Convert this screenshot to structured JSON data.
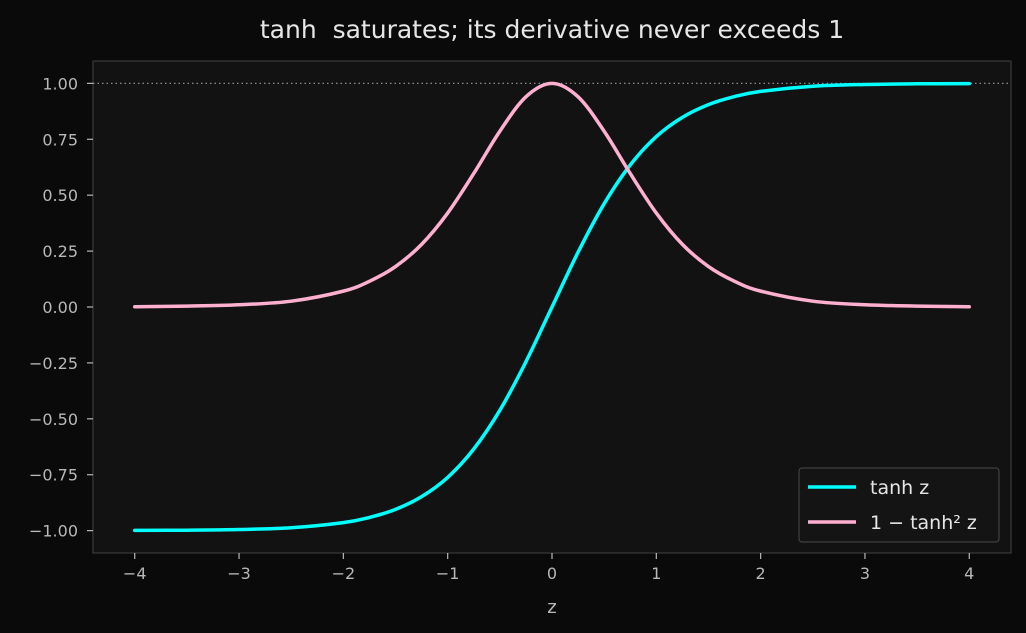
{
  "chart_data": {
    "type": "line",
    "title": "tanh  saturates; its derivative never exceeds 1",
    "xlabel": "z",
    "ylabel": "",
    "xlim": [
      -4.4,
      4.4
    ],
    "ylim": [
      -1.1,
      1.1
    ],
    "x_ticks": [
      -4,
      -3,
      -2,
      -1,
      0,
      1,
      2,
      3,
      4
    ],
    "x_tick_labels": [
      "−4",
      "−3",
      "−2",
      "−1",
      "0",
      "1",
      "2",
      "3",
      "4"
    ],
    "y_ticks": [
      1.0,
      0.75,
      0.5,
      0.25,
      0.0,
      -0.25,
      -0.5,
      -0.75,
      -1.0
    ],
    "y_tick_labels": [
      "1.00",
      "0.75",
      "0.50",
      "0.25",
      "0.00",
      "−0.25",
      "−0.50",
      "−0.75",
      "−1.00"
    ],
    "grid": false,
    "reference_line": {
      "y": 1.0,
      "style": "dotted",
      "color": "#8a8a8a"
    },
    "legend_position": "lower-right",
    "series": [
      {
        "name": "tanh z",
        "color": "#00ffff",
        "x": [
          -4,
          -3.5,
          -3,
          -2.5,
          -2,
          -1.75,
          -1.5,
          -1.25,
          -1,
          -0.75,
          -0.5,
          -0.25,
          0,
          0.25,
          0.5,
          0.75,
          1,
          1.25,
          1.5,
          1.75,
          2,
          2.5,
          3,
          3.5,
          4
        ],
        "y": [
          -0.999,
          -0.998,
          -0.995,
          -0.987,
          -0.964,
          -0.941,
          -0.905,
          -0.848,
          -0.762,
          -0.635,
          -0.462,
          -0.245,
          0.0,
          0.245,
          0.462,
          0.635,
          0.762,
          0.848,
          0.905,
          0.941,
          0.964,
          0.987,
          0.995,
          0.998,
          0.999
        ]
      },
      {
        "name": "1 − tanh² z",
        "color": "#ffb0d0",
        "x": [
          -4,
          -3.5,
          -3,
          -2.5,
          -2,
          -1.75,
          -1.5,
          -1.25,
          -1,
          -0.75,
          -0.5,
          -0.25,
          0,
          0.25,
          0.5,
          0.75,
          1,
          1.25,
          1.5,
          1.75,
          2,
          2.5,
          3,
          3.5,
          4
        ],
        "y": [
          0.001,
          0.004,
          0.01,
          0.026,
          0.071,
          0.115,
          0.181,
          0.28,
          0.42,
          0.597,
          0.786,
          0.94,
          1.0,
          0.94,
          0.786,
          0.597,
          0.42,
          0.28,
          0.181,
          0.115,
          0.071,
          0.026,
          0.01,
          0.004,
          0.001
        ]
      }
    ]
  }
}
